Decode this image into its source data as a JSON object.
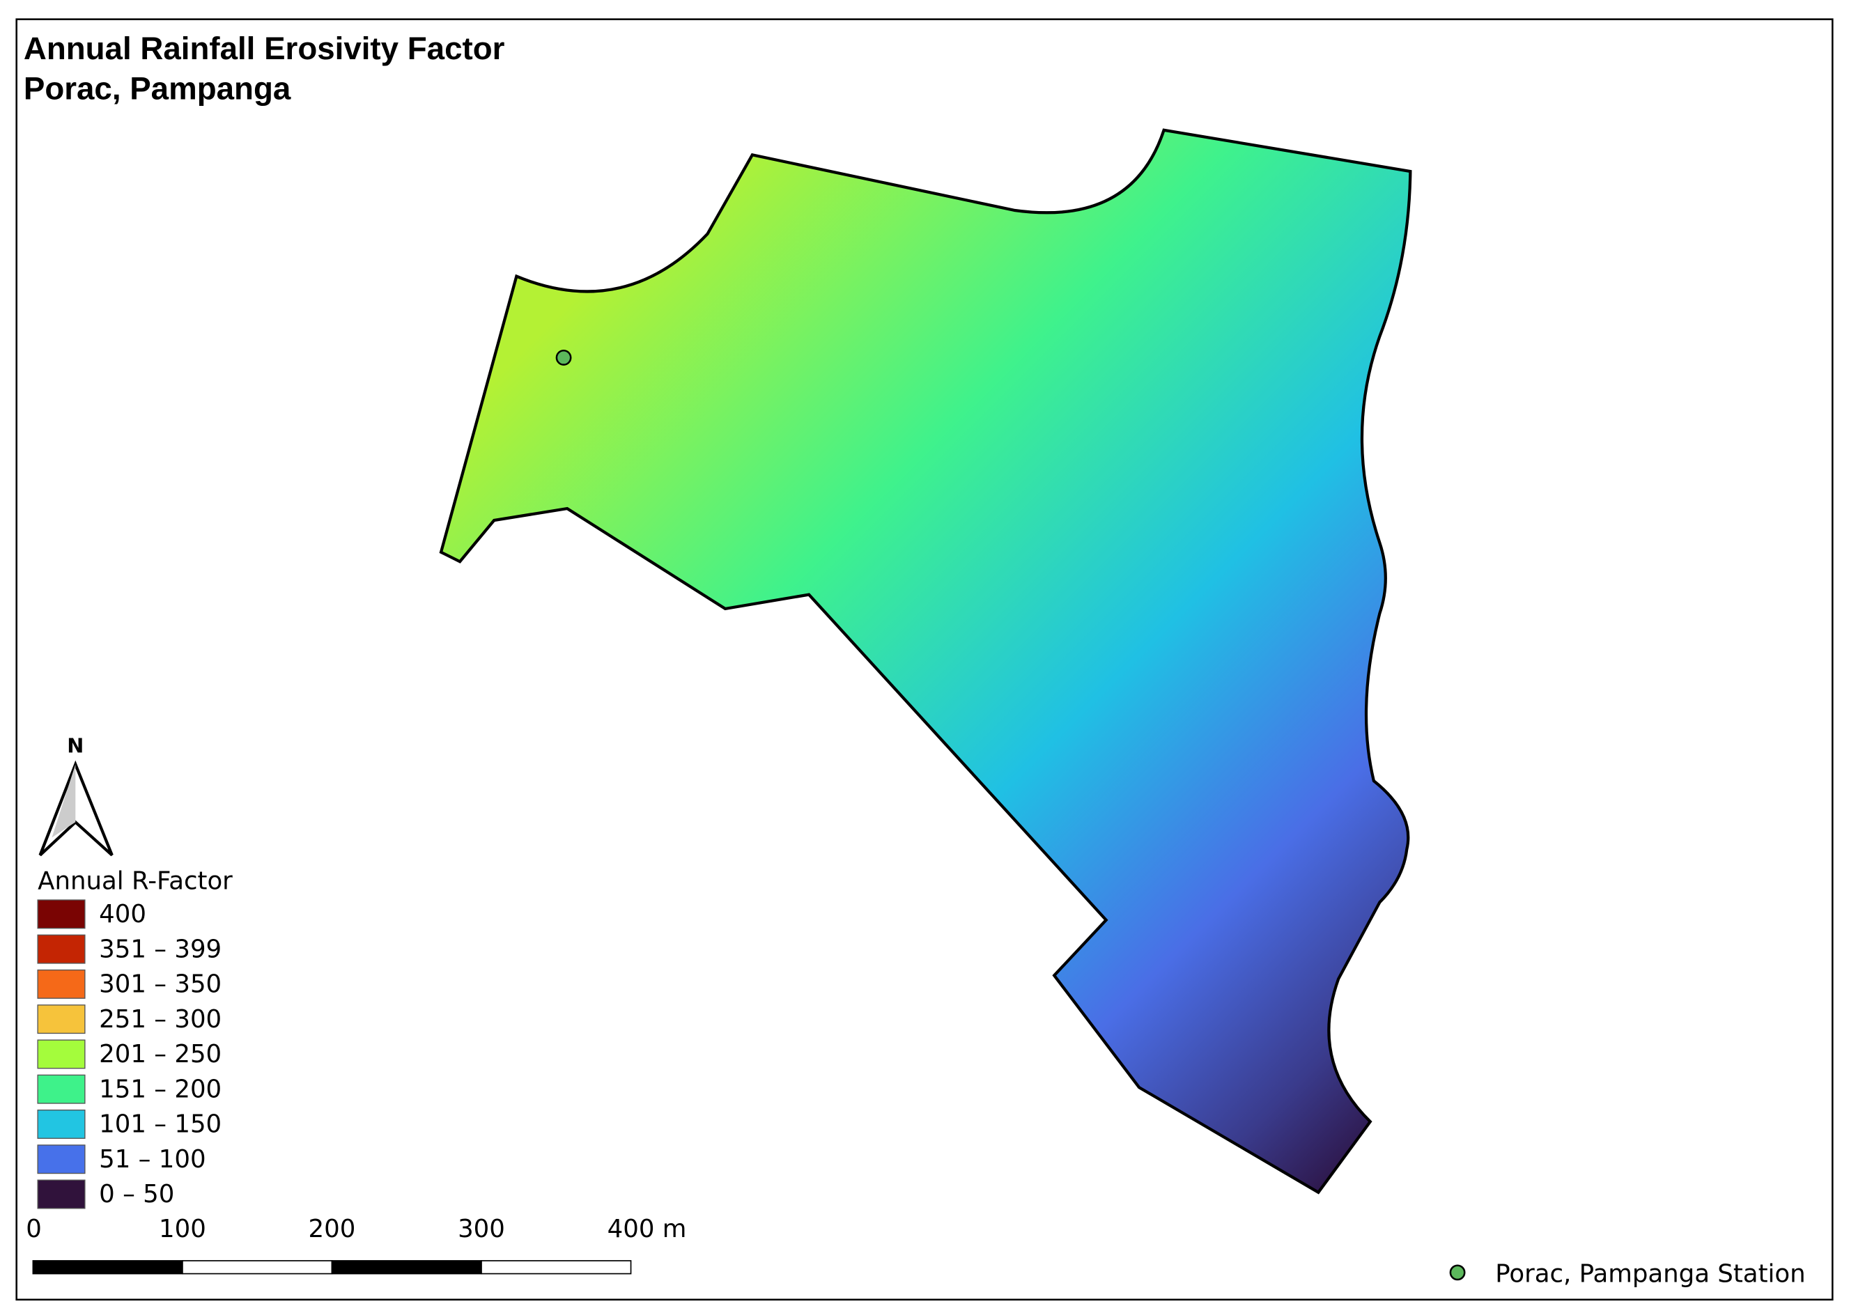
{
  "title": [
    "Annual Rainfall Erosivity Factor",
    "Porac, Pampanga"
  ],
  "north_arrow": {
    "label": "N"
  },
  "legend": {
    "title": "Annual R-Factor",
    "items": [
      {
        "label": "400",
        "color": "#7a0403"
      },
      {
        "label": "351 – 399",
        "color": "#c42503"
      },
      {
        "label": "301 – 350",
        "color": "#f56918"
      },
      {
        "label": "251 – 300",
        "color": "#f6c33b"
      },
      {
        "label": "201 – 250",
        "color": "#a4fc3c"
      },
      {
        "label": "151 – 200",
        "color": "#3ef28a"
      },
      {
        "label": "101 – 150",
        "color": "#22c5e2"
      },
      {
        "label": "51 – 100",
        "color": "#4771ea"
      },
      {
        "label": "0 – 50",
        "color": "#30123b"
      }
    ]
  },
  "scale_bar": {
    "labels": [
      "0",
      "100",
      "200",
      "300",
      "400 m"
    ]
  },
  "station_legend": {
    "label": "Porac, Pampanga Station",
    "color": "#5cb85c"
  }
}
